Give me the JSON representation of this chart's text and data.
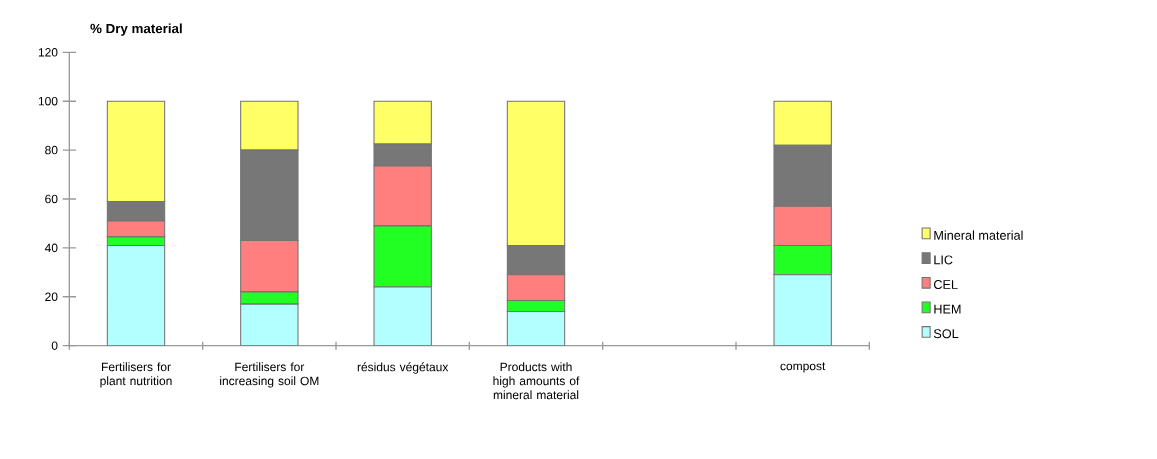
{
  "chart_data": {
    "type": "bar",
    "stacked": true,
    "ylabel": "% Dry material",
    "categories": [
      "Fertilisers for plant nutrition",
      "Fertilisers for increasing soil OM",
      "résidus végétaux",
      "Products with high amounts of mineral material",
      null,
      "compost"
    ],
    "series": [
      {
        "name": "SOL",
        "color": "#b3ffff",
        "values": [
          41,
          17,
          24,
          14,
          null,
          29
        ]
      },
      {
        "name": "HEM",
        "color": "#22ff22",
        "values": [
          3.5,
          5,
          25,
          4.5,
          null,
          12
        ]
      },
      {
        "name": "CEL",
        "color": "#ff7f7f",
        "values": [
          6.5,
          21,
          24.5,
          10.5,
          null,
          16
        ]
      },
      {
        "name": "LIC",
        "color": "#777777",
        "values": [
          8,
          37,
          9,
          12,
          null,
          25
        ]
      },
      {
        "name": "Mineral material",
        "color": "#ffff66",
        "values": [
          41,
          20,
          17.5,
          59,
          null,
          18
        ]
      }
    ],
    "ylim": [
      0,
      120
    ],
    "yticks": [
      0,
      20,
      40,
      60,
      80,
      100,
      120
    ],
    "grid": false,
    "legend": "right"
  }
}
